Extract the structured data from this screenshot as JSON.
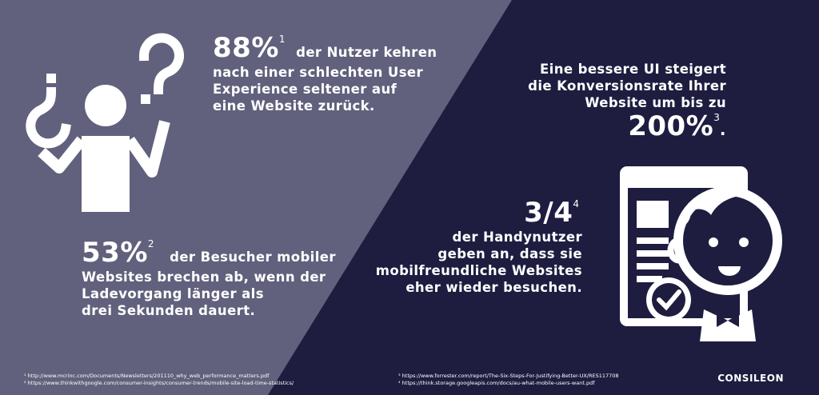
{
  "colors": {
    "left_panel": "#61617d",
    "right_panel": "#1e1d40",
    "text": "#ffffff"
  },
  "stat1": {
    "value": "88%",
    "ref": "1",
    "line1": "der Nutzer kehren",
    "rest": [
      "nach einer schlechten User",
      "Experience seltener auf",
      "eine Website zurück."
    ]
  },
  "stat2": {
    "value": "53%",
    "ref": "2",
    "line1": "der Besucher mobiler",
    "rest": [
      "Websites brechen ab, wenn der",
      "Ladevorgang länger als",
      "drei Sekunden dauert."
    ]
  },
  "stat3": {
    "lines": [
      "Eine bessere UI steigert",
      "die Konversionsrate Ihrer",
      "Website um bis zu"
    ],
    "value": "200%",
    "ref": "3",
    "trail": "."
  },
  "stat4": {
    "value": "3/4",
    "ref": "4",
    "lines": [
      "der Handynutzer",
      "geben an, dass sie",
      "mobilfreundliche Websites",
      "eher wieder besuchen."
    ]
  },
  "footnotes": {
    "left": [
      "¹ http://www.mcrinc.com/Documents/Newsletters/201110_why_web_performance_matters.pdf",
      "² https://www.thinkwithgoogle.com/consumer-insights/consumer-trends/mobile-site-load-time-statistics/"
    ],
    "right": [
      "³ https://www.forrester.com/report/The-Six-Steps-For-Justifying-Better-UX/RES117708",
      "⁴ https://think.storage.googleapis.com/docs/au-what-mobile-users-want.pdf"
    ]
  },
  "logo": "CONSILEON",
  "icons": {
    "left": "confused-person-icon",
    "right": "smiling-person-browser-icon"
  }
}
